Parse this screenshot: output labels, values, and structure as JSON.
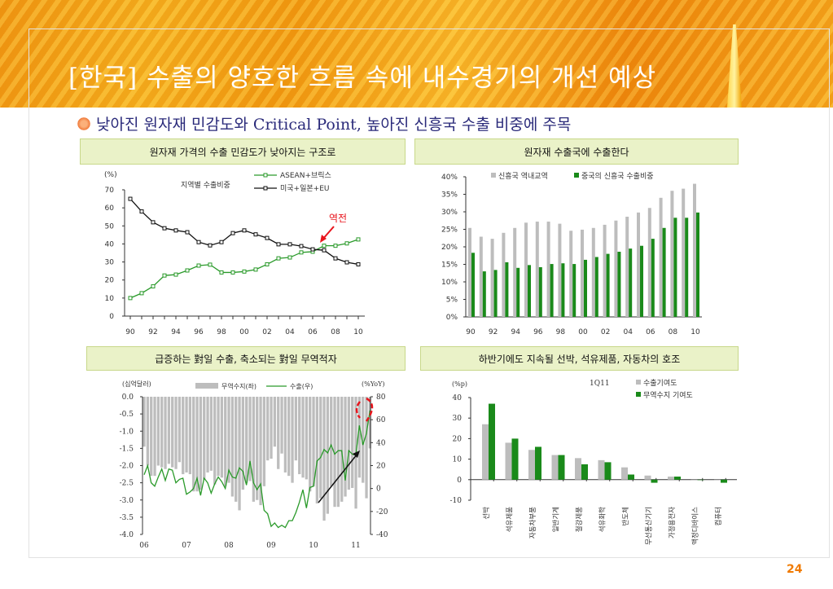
{
  "header": {
    "title": "[한국] 수출의 양호한 흐름 속에 내수경기의 개선 예상",
    "subtitle": "낮아진 원자재 민감도와 Critical Point, 높아진 신흥국 수출 비중에 주목"
  },
  "panels": [
    {
      "heading": "원자재 가격의 수출 민감도가 낮아지는 구조로"
    },
    {
      "heading": "원자재 수출국에 수출한다"
    },
    {
      "heading": "급증하는 對일 수출, 축소되는 對일 무역적자"
    },
    {
      "heading": "하반기에도 지속될 선박, 석유제품, 자동차의 호조"
    }
  ],
  "page_number": "24",
  "colors": {
    "green": "#1a8a1a",
    "green_line": "#2a9a2a",
    "gray": "#bdbdbd",
    "red": "#e8141c",
    "navy": "#2a2a7a"
  },
  "chart_data": [
    {
      "type": "line",
      "title": "지역별 수출비중",
      "ylabel": "(%)",
      "ylim": [
        0,
        70
      ],
      "yticks": [
        "0",
        "10",
        "20",
        "30",
        "40",
        "50",
        "60",
        "70"
      ],
      "xticks": [
        "90",
        "92",
        "94",
        "96",
        "98",
        "00",
        "02",
        "04",
        "06",
        "08",
        "10"
      ],
      "x": [
        1990,
        1991,
        1992,
        1993,
        1994,
        1995,
        1996,
        1997,
        1998,
        1999,
        2000,
        2001,
        2002,
        2003,
        2004,
        2005,
        2006,
        2007,
        2008,
        2009,
        2010
      ],
      "series": [
        {
          "name": "ASEAN+브릭스",
          "color": "#2a9a2a",
          "values": [
            10,
            12.7,
            16.5,
            22.5,
            23,
            25.3,
            28,
            28.5,
            24.2,
            24.2,
            24.7,
            25.8,
            28.7,
            32,
            32.5,
            35.3,
            35.7,
            39,
            39,
            40.3,
            42.5
          ]
        },
        {
          "name": "미국+일본+EU",
          "color": "#111111",
          "values": [
            65,
            58,
            52,
            48.7,
            47.5,
            46.5,
            41,
            39.2,
            41,
            46,
            47.5,
            45.3,
            43.3,
            39.8,
            39.8,
            38.8,
            37,
            36.5,
            32,
            29.8,
            28.7
          ]
        }
      ],
      "annotation": "역전"
    },
    {
      "type": "bar",
      "ylim": [
        0,
        40
      ],
      "yticks": [
        "0%",
        "5%",
        "10%",
        "15%",
        "20%",
        "25%",
        "30%",
        "35%",
        "40%"
      ],
      "xticks": [
        "90",
        "92",
        "94",
        "96",
        "98",
        "00",
        "02",
        "04",
        "06",
        "08",
        "10"
      ],
      "x": [
        1990,
        1991,
        1992,
        1993,
        1994,
        1995,
        1996,
        1997,
        1998,
        1999,
        2000,
        2001,
        2002,
        2003,
        2004,
        2005,
        2006,
        2007,
        2008,
        2009,
        2010
      ],
      "series": [
        {
          "name": "신흥국 역내교역",
          "color": "#bdbdbd",
          "values": [
            25.4,
            22.9,
            22.3,
            24,
            25.4,
            26.9,
            27.2,
            27.2,
            26.6,
            24.6,
            24.9,
            25.4,
            26.3,
            27.5,
            28.6,
            29.8,
            31.1,
            34,
            36,
            36.6,
            38
          ]
        },
        {
          "name": "중국의 신흥국 수출비중",
          "color": "#1a8a1a",
          "values": [
            18.3,
            13,
            13.4,
            15.6,
            14,
            14.8,
            14.2,
            15.1,
            15.3,
            15.1,
            16.3,
            17.1,
            18,
            18.6,
            19.5,
            20.3,
            22.3,
            25.4,
            28.3,
            28.3,
            29.8
          ]
        }
      ]
    },
    {
      "type": "bar+line",
      "ylabel_left": "(십억달러)",
      "ylabel_right": "(%YoY)",
      "ylim_left": [
        -4,
        0
      ],
      "ylim_right": [
        -40,
        80
      ],
      "yticks_left": [
        "0.0",
        "-0.5",
        "-1.0",
        "-1.5",
        "-2.0",
        "-2.5",
        "-3.0",
        "-3.5",
        "-4.0"
      ],
      "yticks_right": [
        "80",
        "60",
        "40",
        "20",
        "0",
        "-20",
        "-40"
      ],
      "xticks": [
        "06",
        "07",
        "08",
        "09",
        "10",
        "11"
      ],
      "series": [
        {
          "name": "무역수지(좌)",
          "color": "#bdbdbd",
          "values": [
            -1.45,
            -2.0,
            -2.3,
            -2.3,
            -2.0,
            -2.05,
            -2.1,
            -1.95,
            -2.05,
            -2.1,
            -1.9,
            -2.25,
            -2.2,
            -2.25,
            -2.75,
            -2.75,
            -2.7,
            -2.4,
            -2.2,
            -2.15,
            -2.55,
            -2.3,
            -2.35,
            -2.6,
            -2.5,
            -2.9,
            -3.05,
            -3.3,
            -2.7,
            -2.5,
            -2.45,
            -3.05,
            -3.0,
            -3.15,
            -2.6,
            -1.85,
            -1.8,
            -1.45,
            -2.1,
            -1.65,
            -2.2,
            -2.3,
            -2.5,
            -1.85,
            -2.25,
            -2.35,
            -2.4,
            -2.75,
            -2.6,
            -3.1,
            -2.95,
            -3.6,
            -3.4,
            -2.6,
            -3.2,
            -3.2,
            -3.05,
            -2.9,
            -2.7,
            -2.65,
            -3.25,
            -2.35,
            -2.5,
            -2.95,
            -1.5
          ]
        },
        {
          "name": "수출(우)",
          "color": "#2a9a2a",
          "values": [
            12,
            20,
            5,
            2,
            10,
            17,
            7,
            17,
            16,
            5,
            8,
            9,
            -5,
            -3,
            0,
            9,
            -6,
            9,
            5,
            -4,
            4,
            10,
            6,
            0,
            16,
            10,
            9,
            18,
            15,
            3,
            24,
            5,
            -1,
            4,
            -19,
            -22,
            -33,
            -30,
            -34,
            -32,
            -34,
            -28,
            -28,
            -21,
            -12,
            -1,
            -17,
            1,
            2,
            24,
            27,
            34,
            31,
            38,
            30,
            33,
            33,
            7,
            33,
            30,
            29,
            55,
            38,
            48,
            68
          ]
        }
      ]
    },
    {
      "type": "bar",
      "title": "1Q11",
      "ylabel": "(%p)",
      "ylim": [
        -10,
        40
      ],
      "yticks": [
        "40",
        "30",
        "20",
        "10",
        "0",
        "-10"
      ],
      "categories": [
        "선박",
        "석유제품",
        "자동차부품",
        "일반기계",
        "철강제품",
        "석유화학",
        "반도체",
        "무선통신기기",
        "가정용전자",
        "액정디바이스",
        "컴퓨터"
      ],
      "series": [
        {
          "name": "수출기여도",
          "color": "#bdbdbd",
          "values": [
            27,
            18,
            14.5,
            12,
            10.5,
            9.5,
            6,
            2,
            1.5,
            0,
            0
          ]
        },
        {
          "name": "무역수지 기여도",
          "color": "#1a8a1a",
          "values": [
            37,
            20,
            16,
            12,
            7.5,
            8.5,
            2.5,
            -1.5,
            1.5,
            0,
            -1.5
          ]
        }
      ]
    }
  ]
}
